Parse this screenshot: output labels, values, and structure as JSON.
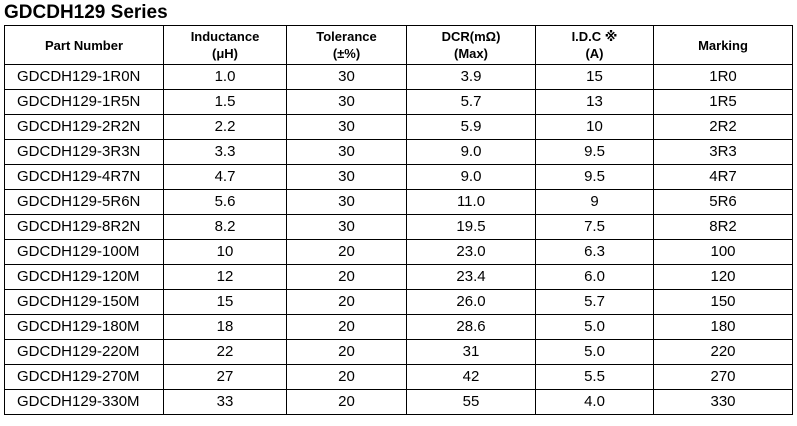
{
  "title": "GDCDH129 Series",
  "headers": [
    {
      "line1": "Part Number",
      "line2": ""
    },
    {
      "line1": "Inductance",
      "line2": "(μH)"
    },
    {
      "line1": "Tolerance",
      "line2": "(±%)"
    },
    {
      "line1": "DCR(mΩ)",
      "line2": "(Max)"
    },
    {
      "line1": "I.D.C ※",
      "line2": "(A)"
    },
    {
      "line1": "Marking",
      "line2": ""
    }
  ],
  "rows": [
    {
      "part_number": "GDCDH129-1R0N",
      "inductance": "1.0",
      "tolerance": "30",
      "dcr": "3.9",
      "idc": "15",
      "marking": "1R0"
    },
    {
      "part_number": "GDCDH129-1R5N",
      "inductance": "1.5",
      "tolerance": "30",
      "dcr": "5.7",
      "idc": "13",
      "marking": "1R5"
    },
    {
      "part_number": "GDCDH129-2R2N",
      "inductance": "2.2",
      "tolerance": "30",
      "dcr": "5.9",
      "idc": "10",
      "marking": "2R2"
    },
    {
      "part_number": "GDCDH129-3R3N",
      "inductance": "3.3",
      "tolerance": "30",
      "dcr": "9.0",
      "idc": "9.5",
      "marking": "3R3"
    },
    {
      "part_number": "GDCDH129-4R7N",
      "inductance": "4.7",
      "tolerance": "30",
      "dcr": "9.0",
      "idc": "9.5",
      "marking": "4R7"
    },
    {
      "part_number": "GDCDH129-5R6N",
      "inductance": "5.6",
      "tolerance": "30",
      "dcr": "11.0",
      "idc": "9",
      "marking": "5R6"
    },
    {
      "part_number": "GDCDH129-8R2N",
      "inductance": "8.2",
      "tolerance": "30",
      "dcr": "19.5",
      "idc": "7.5",
      "marking": "8R2"
    },
    {
      "part_number": "GDCDH129-100M",
      "inductance": "10",
      "tolerance": "20",
      "dcr": "23.0",
      "idc": "6.3",
      "marking": "100"
    },
    {
      "part_number": "GDCDH129-120M",
      "inductance": "12",
      "tolerance": "20",
      "dcr": "23.4",
      "idc": "6.0",
      "marking": "120"
    },
    {
      "part_number": "GDCDH129-150M",
      "inductance": "15",
      "tolerance": "20",
      "dcr": "26.0",
      "idc": "5.7",
      "marking": "150"
    },
    {
      "part_number": "GDCDH129-180M",
      "inductance": "18",
      "tolerance": "20",
      "dcr": "28.6",
      "idc": "5.0",
      "marking": "180"
    },
    {
      "part_number": "GDCDH129-220M",
      "inductance": "22",
      "tolerance": "20",
      "dcr": "31",
      "idc": "5.0",
      "marking": "220"
    },
    {
      "part_number": "GDCDH129-270M",
      "inductance": "27",
      "tolerance": "20",
      "dcr": "42",
      "idc": "5.5",
      "marking": "270"
    },
    {
      "part_number": "GDCDH129-330M",
      "inductance": "33",
      "tolerance": "20",
      "dcr": "55",
      "idc": "4.0",
      "marking": "330"
    }
  ]
}
